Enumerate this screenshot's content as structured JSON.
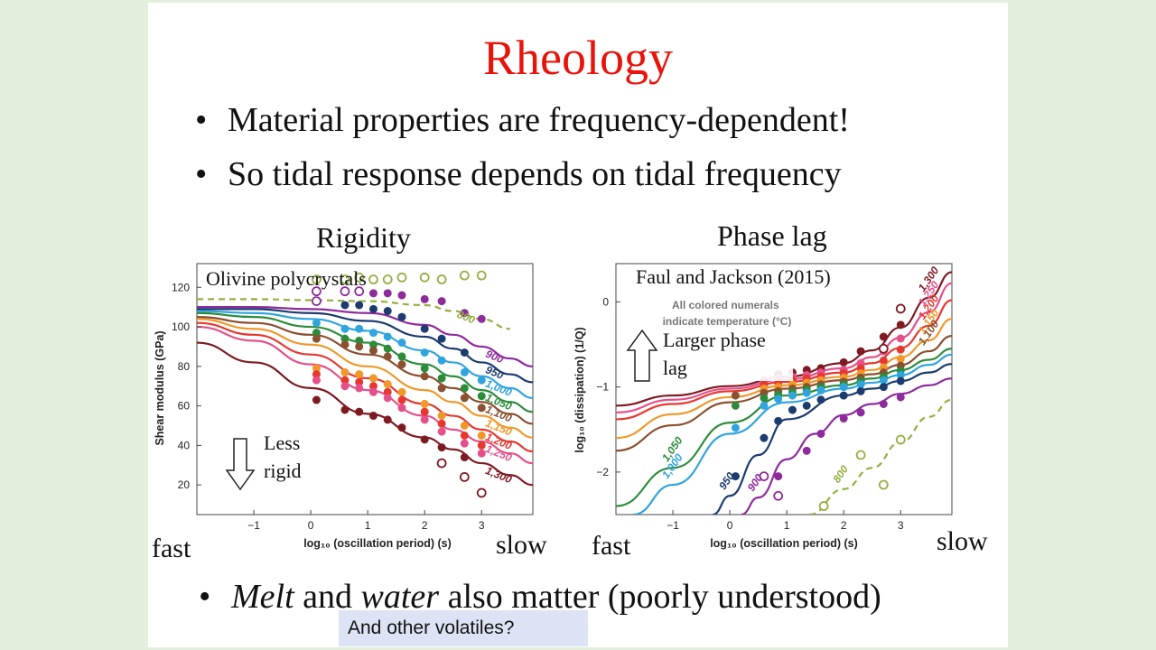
{
  "slide": {
    "title": "Rheology",
    "bullets": [
      "Material properties are frequency-dependent!",
      "So tidal response depends on tidal frequency"
    ],
    "bottom_bullet": {
      "part1": "Melt",
      "part2": " and ",
      "part3": "water",
      "part4": " also matter (poorly understood)"
    },
    "note": "And other volatiles?",
    "labels": {
      "rigidity": "Rigidity",
      "phase_lag": "Phase lag",
      "fast": "fast",
      "slow": "slow"
    },
    "colors": {
      "title": "#e8140c",
      "note_bg": "#dde3f4",
      "background": "#e3eedd"
    }
  },
  "chart_data": [
    {
      "type": "line",
      "title": "Olivine polycrystals",
      "xlabel": "log₁₀ (oscillation period) (s)",
      "ylabel": "Shear modulus (GPa)",
      "xlim": [
        -2,
        3.9
      ],
      "ylim": [
        5,
        132
      ],
      "xticks": [
        "−1",
        "0",
        "1",
        "2",
        "3"
      ],
      "yticks": [
        "20",
        "40",
        "60",
        "80",
        "100",
        "120"
      ],
      "annotation": {
        "line1": "Less",
        "line2": "rigid"
      },
      "series": [
        {
          "name": "800",
          "color": "#93b040",
          "dashed": true,
          "x": [
            -2,
            -1,
            0,
            1,
            2,
            2.5,
            3,
            3.5
          ],
          "y": [
            114,
            114,
            113.5,
            113,
            111,
            108,
            104,
            99
          ]
        },
        {
          "name": "900",
          "color": "#8e2b9c",
          "x": [
            -2,
            -1,
            0,
            1,
            2,
            2.5,
            3,
            3.5,
            3.9
          ],
          "y": [
            110,
            110,
            109,
            107,
            101,
            96,
            90,
            84,
            80
          ]
        },
        {
          "name": "950",
          "color": "#1c3c70",
          "x": [
            -2,
            -1,
            0,
            1,
            2,
            2.5,
            3,
            3.5,
            3.9
          ],
          "y": [
            109,
            109,
            107,
            103,
            95,
            89,
            82,
            76,
            72
          ]
        },
        {
          "name": "1,000",
          "color": "#30a5dd",
          "x": [
            -2,
            -1,
            0,
            1,
            2,
            2.5,
            3,
            3.5,
            3.9
          ],
          "y": [
            108,
            107,
            104,
            98,
            88,
            82,
            75,
            69,
            64
          ]
        },
        {
          "name": "1,050",
          "color": "#2d8c3c",
          "x": [
            -2,
            -1,
            0,
            1,
            2,
            2.5,
            3,
            3.5,
            3.9
          ],
          "y": [
            107,
            105,
            100,
            92,
            81,
            75,
            68,
            62,
            57
          ]
        },
        {
          "name": "1,100",
          "color": "#8a5030",
          "x": [
            -2,
            -1,
            0,
            1,
            2,
            2.5,
            3,
            3.5,
            3.9
          ],
          "y": [
            105,
            102,
            96,
            86,
            75,
            69,
            62,
            56,
            51
          ]
        },
        {
          "name": "1,150",
          "color": "#f0982a",
          "x": [
            -2,
            -1,
            0,
            1,
            2,
            2.5,
            3,
            3.5,
            3.9
          ],
          "y": [
            104,
            99,
            91,
            80,
            68,
            62,
            55,
            49,
            44
          ]
        },
        {
          "name": "1,200",
          "color": "#e63830",
          "x": [
            -2,
            -1,
            0,
            1,
            2,
            2.5,
            3,
            3.5,
            3.9
          ],
          "y": [
            102,
            96,
            86,
            74,
            61,
            55,
            48,
            42,
            37
          ]
        },
        {
          "name": "1,250",
          "color": "#e6508a",
          "x": [
            -2,
            -1,
            0,
            1,
            2,
            2.5,
            3,
            3.5,
            3.9
          ],
          "y": [
            100,
            93,
            81,
            68,
            55,
            48,
            42,
            36,
            31
          ]
        },
        {
          "name": "1,300",
          "color": "#7e1a22",
          "x": [
            -2,
            -1,
            0,
            1,
            2,
            2.5,
            3,
            3.5,
            3.9
          ],
          "y": [
            92,
            82,
            69,
            56,
            44,
            38,
            31,
            25,
            20
          ]
        }
      ],
      "points": [
        {
          "color": "#93b040",
          "open": true,
          "x": [
            0.1,
            0.6,
            0.85,
            1.1,
            1.35,
            1.6,
            2.0,
            2.3,
            2.7,
            3.0
          ],
          "y": [
            124,
            124,
            125,
            124,
            124,
            125,
            125,
            124,
            126,
            126
          ]
        },
        {
          "color": "#8e2b9c",
          "open": true,
          "x": [
            0.1,
            0.6,
            0.85,
            0.1
          ],
          "y": [
            118,
            118,
            118,
            113
          ]
        },
        {
          "color": "#8e2b9c",
          "x": [
            1.1,
            1.35,
            1.6,
            2.0,
            2.3,
            2.7,
            3.0
          ],
          "y": [
            117,
            117,
            116,
            114,
            113,
            107,
            104
          ]
        },
        {
          "color": "#1c3c70",
          "x": [
            0.6,
            0.85,
            1.1,
            1.35,
            1.6,
            2.0,
            2.3,
            2.7
          ],
          "y": [
            111,
            111,
            109,
            108,
            105,
            99,
            94,
            87
          ]
        },
        {
          "color": "#30a5dd",
          "x": [
            0.1,
            0.6,
            0.85,
            1.1,
            1.35,
            1.6,
            2.0,
            2.3,
            2.7,
            3.0
          ],
          "y": [
            102,
            99,
            99,
            97,
            95,
            92,
            87,
            83,
            77,
            73
          ]
        },
        {
          "color": "#2d8c3c",
          "x": [
            0.1,
            0.6,
            0.85,
            1.1,
            1.35,
            1.6,
            2.0,
            2.3,
            2.7,
            3.0
          ],
          "y": [
            97,
            94,
            93,
            91,
            89,
            85,
            79,
            74,
            69,
            65
          ]
        },
        {
          "color": "#8a5030",
          "x": [
            0.1,
            0.6,
            0.85,
            1.1,
            1.35,
            1.6,
            2.0,
            2.3,
            2.7,
            3.0
          ],
          "y": [
            94,
            91,
            90,
            88,
            85,
            81,
            75,
            69,
            64,
            59
          ]
        },
        {
          "color": "#f0982a",
          "x": [
            0.1,
            0.6,
            0.85,
            1.1,
            1.35,
            1.6,
            2.0,
            2.3,
            2.7,
            3.0
          ],
          "y": [
            79,
            77,
            76,
            74,
            71,
            67,
            61,
            55,
            50,
            45
          ]
        },
        {
          "color": "#e63830",
          "x": [
            0.1,
            0.6,
            0.85,
            1.1,
            1.35,
            1.6,
            2.0,
            2.3,
            2.7,
            3.0
          ],
          "y": [
            76,
            73,
            72,
            70,
            67,
            63,
            57,
            51,
            45,
            40
          ]
        },
        {
          "color": "#e6508a",
          "x": [
            0.1,
            0.6,
            0.85,
            1.1,
            1.35,
            1.6,
            2.0,
            2.3,
            2.7,
            3.0
          ],
          "y": [
            73,
            70,
            69,
            67,
            64,
            59,
            53,
            47,
            41,
            36
          ]
        },
        {
          "color": "#7e1a22",
          "x": [
            0.1,
            0.6,
            0.85,
            1.1,
            1.35,
            1.6,
            2.0,
            2.3,
            2.7
          ],
          "y": [
            63,
            58,
            57,
            55,
            53,
            49,
            43,
            39,
            34
          ]
        },
        {
          "color": "#7e1a22",
          "open": true,
          "x": [
            2.3,
            2.7,
            3.0
          ],
          "y": [
            31,
            24,
            16
          ]
        }
      ]
    },
    {
      "type": "line",
      "title": "Faul and Jackson (2015)",
      "subtitle": "All colored numerals indicate temperature (°C)",
      "xlabel": "log₁₀ (oscillation period) (s)",
      "ylabel": "log₁₀ (dissipation) (1/Q)",
      "xlim": [
        -2,
        3.9
      ],
      "ylim": [
        -2.5,
        0.45
      ],
      "xticks": [
        "−1",
        "0",
        "1",
        "2",
        "3"
      ],
      "yticks": [
        "0",
        "−1",
        "−2"
      ],
      "annotation": {
        "line1": "Larger phase",
        "line2": "lag"
      },
      "series": [
        {
          "name": "1,300",
          "color": "#7e1a22",
          "x": [
            -2,
            -1,
            0,
            1,
            2,
            2.5,
            3,
            3.5,
            3.9
          ],
          "y": [
            -1.22,
            -1.1,
            -0.99,
            -0.88,
            -0.72,
            -0.57,
            -0.3,
            0.05,
            0.35
          ]
        },
        {
          "name": "1,250",
          "color": "#e6508a",
          "x": [
            -2,
            -1,
            0,
            1,
            2,
            2.5,
            3,
            3.5,
            3.9
          ],
          "y": [
            -1.3,
            -1.15,
            -1.02,
            -0.91,
            -0.78,
            -0.65,
            -0.42,
            -0.12,
            0.22
          ]
        },
        {
          "name": "1,200",
          "color": "#e63830",
          "x": [
            -2,
            -1,
            0,
            1,
            2,
            2.5,
            3,
            3.5,
            3.9
          ],
          "y": [
            -1.38,
            -1.2,
            -1.05,
            -0.94,
            -0.83,
            -0.72,
            -0.54,
            -0.28,
            0.02
          ]
        },
        {
          "name": "1,150",
          "color": "#f0982a",
          "x": [
            -2,
            -1,
            0,
            1,
            2,
            2.5,
            3,
            3.5,
            3.9
          ],
          "y": [
            -1.6,
            -1.32,
            -1.12,
            -0.98,
            -0.88,
            -0.8,
            -0.65,
            -0.45,
            -0.2
          ]
        },
        {
          "name": "1,100",
          "color": "#8a5030",
          "x": [
            -2,
            -1,
            0,
            1,
            2,
            2.5,
            3,
            3.5,
            3.9
          ],
          "y": [
            -1.75,
            -1.45,
            -1.18,
            -1.02,
            -0.92,
            -0.85,
            -0.74,
            -0.58,
            -0.4
          ]
        },
        {
          "name": "1,050",
          "color": "#2d8c3c",
          "x": [
            -2,
            -1,
            0,
            1,
            2,
            2.5,
            3,
            3.5,
            3.9
          ],
          "y": [
            -2.4,
            -1.95,
            -1.42,
            -1.1,
            -0.98,
            -0.9,
            -0.8,
            -0.68,
            -0.55
          ]
        },
        {
          "name": "1,000",
          "color": "#30a5dd",
          "x": [
            -1.7,
            -1,
            0,
            1,
            2,
            2.5,
            3,
            3.5,
            3.9
          ],
          "y": [
            -2.5,
            -2.15,
            -1.55,
            -1.18,
            -1.02,
            -0.95,
            -0.86,
            -0.74,
            -0.62
          ]
        },
        {
          "name": "950",
          "color": "#1c3c70",
          "x": [
            -0.3,
            0,
            0.5,
            1,
            2,
            2.5,
            3,
            3.5,
            3.9
          ],
          "y": [
            -2.5,
            -2.28,
            -1.8,
            -1.38,
            -1.1,
            -1.02,
            -0.93,
            -0.83,
            -0.73
          ]
        },
        {
          "name": "900",
          "color": "#8e2b9c",
          "x": [
            0.2,
            0.5,
            1,
            1.5,
            2,
            2.5,
            3,
            3.5,
            3.9
          ],
          "y": [
            -2.5,
            -2.3,
            -1.85,
            -1.55,
            -1.33,
            -1.2,
            -1.08,
            -0.98,
            -0.9
          ]
        },
        {
          "name": "800",
          "color": "#93b040",
          "dashed": true,
          "x": [
            1.4,
            2,
            2.5,
            3,
            3.5,
            3.9
          ],
          "y": [
            -2.5,
            -2.2,
            -1.95,
            -1.65,
            -1.35,
            -1.15
          ]
        }
      ],
      "points": [
        {
          "color": "#7e1a22",
          "x": [
            0.85,
            1.1,
            1.35,
            1.6,
            2.0,
            2.3,
            2.7,
            3.0
          ],
          "y": [
            -0.85,
            -0.83,
            -0.8,
            -0.78,
            -0.71,
            -0.58,
            -0.41,
            -0.27
          ]
        },
        {
          "color": "#e6508a",
          "x": [
            0.6,
            0.85,
            1.1,
            1.35,
            1.6,
            2.0,
            2.3,
            2.7,
            3.0
          ],
          "y": [
            -0.92,
            -0.9,
            -0.88,
            -0.86,
            -0.83,
            -0.8,
            -0.72,
            -0.58,
            -0.43
          ]
        },
        {
          "color": "#e63830",
          "x": [
            0.6,
            0.85,
            1.1,
            1.35,
            1.6,
            2.0,
            2.3,
            2.7,
            3.0
          ],
          "y": [
            -0.97,
            -0.95,
            -0.92,
            -0.9,
            -0.88,
            -0.84,
            -0.78,
            -0.69,
            -0.56
          ]
        },
        {
          "color": "#f0982a",
          "x": [
            0.6,
            0.85,
            1.1,
            1.35,
            1.6,
            2.0,
            2.3,
            2.7,
            3.0
          ],
          "y": [
            -1.02,
            -1.0,
            -0.97,
            -0.95,
            -0.92,
            -0.89,
            -0.84,
            -0.77,
            -0.67
          ]
        },
        {
          "color": "#8a5030",
          "x": [
            0.1,
            0.6,
            0.85,
            1.1,
            1.35,
            1.6,
            2.0,
            2.3,
            2.7,
            3.0
          ],
          "y": [
            -1.1,
            -1.07,
            -1.05,
            -1.02,
            -1.0,
            -0.97,
            -0.94,
            -0.89,
            -0.83,
            -0.75
          ]
        },
        {
          "color": "#2d8c3c",
          "x": [
            0.1,
            0.6,
            0.85,
            1.1,
            1.35,
            1.6,
            2.0,
            2.3,
            2.7,
            3.0
          ],
          "y": [
            -1.22,
            -1.13,
            -1.09,
            -1.06,
            -1.03,
            -1.0,
            -0.97,
            -0.93,
            -0.88,
            -0.81
          ]
        },
        {
          "color": "#30a5dd",
          "x": [
            0.1,
            0.6,
            0.85,
            1.1,
            1.35,
            1.6,
            2.0,
            2.3,
            2.7,
            3.0
          ],
          "y": [
            -1.48,
            -1.22,
            -1.14,
            -1.1,
            -1.07,
            -1.04,
            -1.0,
            -0.97,
            -0.92,
            -0.86
          ]
        },
        {
          "color": "#1c3c70",
          "x": [
            0.1,
            0.6,
            0.85,
            1.1,
            1.35,
            1.6,
            2.0,
            2.3,
            2.7,
            3.0
          ],
          "y": [
            -2.05,
            -1.6,
            -1.4,
            -1.27,
            -1.22,
            -1.15,
            -1.1,
            -1.05,
            -1.0,
            -0.93
          ]
        },
        {
          "color": "#8e2b9c",
          "x": [
            0.85,
            1.35,
            1.6,
            2.0,
            2.3,
            2.7,
            3.0
          ],
          "y": [
            -2.05,
            -1.75,
            -1.55,
            -1.37,
            -1.3,
            -1.2,
            -1.12
          ]
        },
        {
          "color": "#8e2b9c",
          "open": true,
          "x": [
            0.6,
            0.85
          ],
          "y": [
            -2.05,
            -2.28
          ]
        },
        {
          "color": "#93b040",
          "open": true,
          "x": [
            1.65,
            2.3,
            2.7,
            3.0
          ],
          "y": [
            -2.4,
            -1.8,
            -2.15,
            -1.62
          ]
        },
        {
          "color": "#7e1a22",
          "open": true,
          "x": [
            2.7,
            3.0
          ],
          "y": [
            -0.55,
            -0.08
          ]
        }
      ]
    }
  ]
}
